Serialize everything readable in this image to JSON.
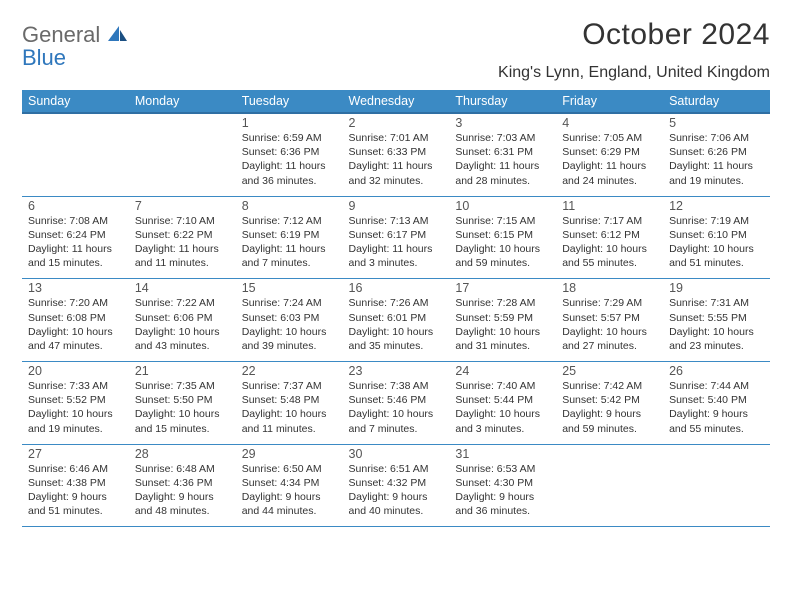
{
  "logo": {
    "word1": "General",
    "word2": "Blue"
  },
  "title": "October 2024",
  "location": "King's Lynn, England, United Kingdom",
  "colors": {
    "header_bg": "#3b8ac4",
    "header_border": "#2f6fa3",
    "cell_border": "#3b8ac4",
    "text": "#333333",
    "logo_gray": "#6a6a6a",
    "logo_blue": "#2f77bc"
  },
  "day_headers": [
    "Sunday",
    "Monday",
    "Tuesday",
    "Wednesday",
    "Thursday",
    "Friday",
    "Saturday"
  ],
  "weeks": [
    [
      null,
      null,
      {
        "n": "1",
        "sr": "Sunrise: 6:59 AM",
        "ss": "Sunset: 6:36 PM",
        "dl": "Daylight: 11 hours and 36 minutes."
      },
      {
        "n": "2",
        "sr": "Sunrise: 7:01 AM",
        "ss": "Sunset: 6:33 PM",
        "dl": "Daylight: 11 hours and 32 minutes."
      },
      {
        "n": "3",
        "sr": "Sunrise: 7:03 AM",
        "ss": "Sunset: 6:31 PM",
        "dl": "Daylight: 11 hours and 28 minutes."
      },
      {
        "n": "4",
        "sr": "Sunrise: 7:05 AM",
        "ss": "Sunset: 6:29 PM",
        "dl": "Daylight: 11 hours and 24 minutes."
      },
      {
        "n": "5",
        "sr": "Sunrise: 7:06 AM",
        "ss": "Sunset: 6:26 PM",
        "dl": "Daylight: 11 hours and 19 minutes."
      }
    ],
    [
      {
        "n": "6",
        "sr": "Sunrise: 7:08 AM",
        "ss": "Sunset: 6:24 PM",
        "dl": "Daylight: 11 hours and 15 minutes."
      },
      {
        "n": "7",
        "sr": "Sunrise: 7:10 AM",
        "ss": "Sunset: 6:22 PM",
        "dl": "Daylight: 11 hours and 11 minutes."
      },
      {
        "n": "8",
        "sr": "Sunrise: 7:12 AM",
        "ss": "Sunset: 6:19 PM",
        "dl": "Daylight: 11 hours and 7 minutes."
      },
      {
        "n": "9",
        "sr": "Sunrise: 7:13 AM",
        "ss": "Sunset: 6:17 PM",
        "dl": "Daylight: 11 hours and 3 minutes."
      },
      {
        "n": "10",
        "sr": "Sunrise: 7:15 AM",
        "ss": "Sunset: 6:15 PM",
        "dl": "Daylight: 10 hours and 59 minutes."
      },
      {
        "n": "11",
        "sr": "Sunrise: 7:17 AM",
        "ss": "Sunset: 6:12 PM",
        "dl": "Daylight: 10 hours and 55 minutes."
      },
      {
        "n": "12",
        "sr": "Sunrise: 7:19 AM",
        "ss": "Sunset: 6:10 PM",
        "dl": "Daylight: 10 hours and 51 minutes."
      }
    ],
    [
      {
        "n": "13",
        "sr": "Sunrise: 7:20 AM",
        "ss": "Sunset: 6:08 PM",
        "dl": "Daylight: 10 hours and 47 minutes."
      },
      {
        "n": "14",
        "sr": "Sunrise: 7:22 AM",
        "ss": "Sunset: 6:06 PM",
        "dl": "Daylight: 10 hours and 43 minutes."
      },
      {
        "n": "15",
        "sr": "Sunrise: 7:24 AM",
        "ss": "Sunset: 6:03 PM",
        "dl": "Daylight: 10 hours and 39 minutes."
      },
      {
        "n": "16",
        "sr": "Sunrise: 7:26 AM",
        "ss": "Sunset: 6:01 PM",
        "dl": "Daylight: 10 hours and 35 minutes."
      },
      {
        "n": "17",
        "sr": "Sunrise: 7:28 AM",
        "ss": "Sunset: 5:59 PM",
        "dl": "Daylight: 10 hours and 31 minutes."
      },
      {
        "n": "18",
        "sr": "Sunrise: 7:29 AM",
        "ss": "Sunset: 5:57 PM",
        "dl": "Daylight: 10 hours and 27 minutes."
      },
      {
        "n": "19",
        "sr": "Sunrise: 7:31 AM",
        "ss": "Sunset: 5:55 PM",
        "dl": "Daylight: 10 hours and 23 minutes."
      }
    ],
    [
      {
        "n": "20",
        "sr": "Sunrise: 7:33 AM",
        "ss": "Sunset: 5:52 PM",
        "dl": "Daylight: 10 hours and 19 minutes."
      },
      {
        "n": "21",
        "sr": "Sunrise: 7:35 AM",
        "ss": "Sunset: 5:50 PM",
        "dl": "Daylight: 10 hours and 15 minutes."
      },
      {
        "n": "22",
        "sr": "Sunrise: 7:37 AM",
        "ss": "Sunset: 5:48 PM",
        "dl": "Daylight: 10 hours and 11 minutes."
      },
      {
        "n": "23",
        "sr": "Sunrise: 7:38 AM",
        "ss": "Sunset: 5:46 PM",
        "dl": "Daylight: 10 hours and 7 minutes."
      },
      {
        "n": "24",
        "sr": "Sunrise: 7:40 AM",
        "ss": "Sunset: 5:44 PM",
        "dl": "Daylight: 10 hours and 3 minutes."
      },
      {
        "n": "25",
        "sr": "Sunrise: 7:42 AM",
        "ss": "Sunset: 5:42 PM",
        "dl": "Daylight: 9 hours and 59 minutes."
      },
      {
        "n": "26",
        "sr": "Sunrise: 7:44 AM",
        "ss": "Sunset: 5:40 PM",
        "dl": "Daylight: 9 hours and 55 minutes."
      }
    ],
    [
      {
        "n": "27",
        "sr": "Sunrise: 6:46 AM",
        "ss": "Sunset: 4:38 PM",
        "dl": "Daylight: 9 hours and 51 minutes."
      },
      {
        "n": "28",
        "sr": "Sunrise: 6:48 AM",
        "ss": "Sunset: 4:36 PM",
        "dl": "Daylight: 9 hours and 48 minutes."
      },
      {
        "n": "29",
        "sr": "Sunrise: 6:50 AM",
        "ss": "Sunset: 4:34 PM",
        "dl": "Daylight: 9 hours and 44 minutes."
      },
      {
        "n": "30",
        "sr": "Sunrise: 6:51 AM",
        "ss": "Sunset: 4:32 PM",
        "dl": "Daylight: 9 hours and 40 minutes."
      },
      {
        "n": "31",
        "sr": "Sunrise: 6:53 AM",
        "ss": "Sunset: 4:30 PM",
        "dl": "Daylight: 9 hours and 36 minutes."
      },
      null,
      null
    ]
  ]
}
